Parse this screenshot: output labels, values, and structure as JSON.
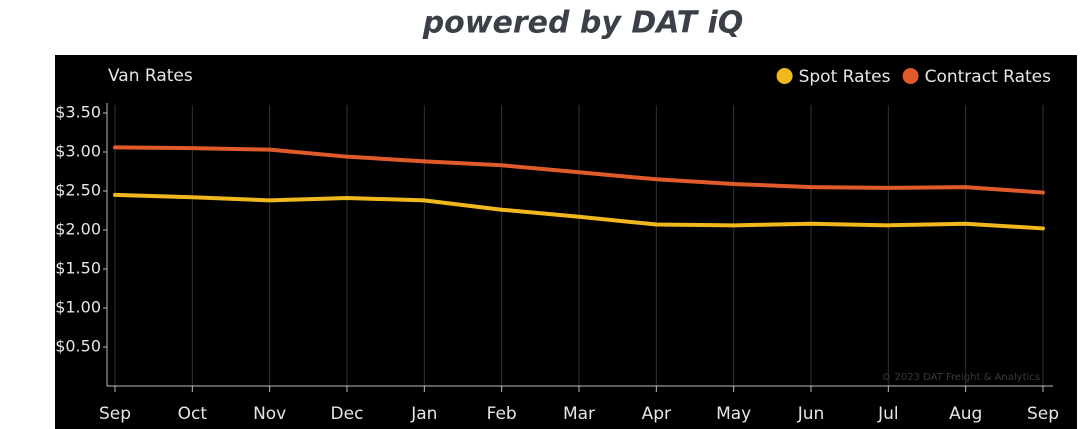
{
  "header": {
    "title": "powered by DAT iQ"
  },
  "chart_data": {
    "type": "line",
    "title": "Van Rates",
    "categories": [
      "Sep",
      "Oct",
      "Nov",
      "Dec",
      "Jan",
      "Feb",
      "Mar",
      "Apr",
      "May",
      "Jun",
      "Jul",
      "Aug",
      "Sep"
    ],
    "series": [
      {
        "name": "Spot Rates",
        "color": "#f0b81c",
        "values": [
          2.45,
          2.42,
          2.38,
          2.41,
          2.38,
          2.26,
          2.17,
          2.07,
          2.06,
          2.08,
          2.06,
          2.08,
          2.02
        ]
      },
      {
        "name": "Contract Rates",
        "color": "#e15a2b",
        "values": [
          3.06,
          3.05,
          3.03,
          2.94,
          2.88,
          2.83,
          2.74,
          2.65,
          2.59,
          2.55,
          2.54,
          2.55,
          2.48
        ]
      }
    ],
    "ylim": [
      0,
      3.5
    ],
    "yticks": [
      {
        "value": 0.5,
        "label": "$0.50"
      },
      {
        "value": 1,
        "label": "$1.00"
      },
      {
        "value": 1.5,
        "label": "$1.50"
      },
      {
        "value": 2,
        "label": "$2.00"
      },
      {
        "value": 2.5,
        "label": "$2.50"
      },
      {
        "value": 3,
        "label": "$3.00"
      },
      {
        "value": 3.5,
        "label": "$3.50"
      }
    ],
    "grid": true,
    "legend": "top-right",
    "annotation": "© 2023 DAT Freight & Analytics"
  }
}
